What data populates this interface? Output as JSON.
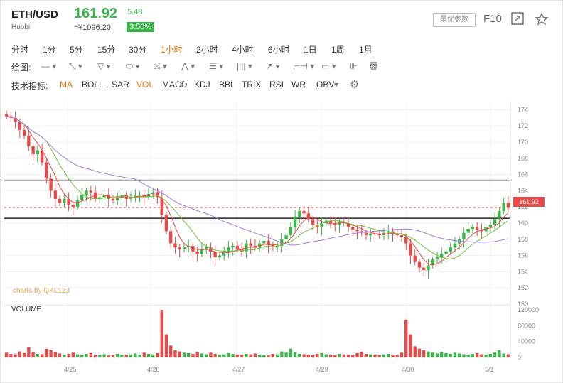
{
  "header": {
    "symbol": "ETH/USD",
    "exchange": "Huobi",
    "price": "161.92",
    "cny_price": "≈¥1096.20",
    "change": "5.48",
    "change_pct": "3.50%",
    "pref_button": "最优参数",
    "f10": "F10"
  },
  "intervals": [
    "分时",
    "1分",
    "5分",
    "15分",
    "30分",
    "1小时",
    "2小时",
    "4小时",
    "6小时",
    "1日",
    "1周",
    "1月"
  ],
  "selected_interval": "1小时",
  "draw_label": "绘图:",
  "indicators_label": "技术指标:",
  "indicators": [
    "MA",
    "BOLL",
    "SAR",
    "VOL",
    "MACD",
    "KDJ",
    "BBI",
    "TRIX",
    "RSI",
    "WR",
    "OBV"
  ],
  "selected_indicators": [
    "MA",
    "VOL"
  ],
  "watermark": "charts by QKL123",
  "volume_label": "VOLUME",
  "colors": {
    "up": "#3bb54a",
    "down": "#e84a4a",
    "accent": "#e8730e",
    "ma_short": "#e84a4a",
    "ma_mid": "#6fbf3c",
    "ma_long": "#a07be0"
  },
  "chart_data": {
    "type": "candlestick",
    "x_ticks": [
      "4/25",
      "4/26",
      "4/27",
      "4/29",
      "4/30",
      "5/1"
    ],
    "y_ticks": [
      150,
      152,
      154,
      156,
      158,
      160,
      162,
      164,
      166,
      168,
      170,
      172,
      174
    ],
    "ylim": [
      150,
      175
    ],
    "volume_ticks": [
      "0",
      "40000",
      "80000",
      "120000"
    ],
    "volume_lim": [
      0,
      120000
    ],
    "current_price": 161.92,
    "support_line": 160.6,
    "resistance_line": 165.3,
    "close_series": [
      173.2,
      173,
      172.5,
      171.5,
      170.8,
      169.5,
      168.5,
      169,
      167.5,
      165.5,
      164,
      163,
      162.5,
      163,
      162.3,
      162,
      162.8,
      163.5,
      164,
      163.8,
      163,
      163.2,
      163.5,
      163,
      162.8,
      163.2,
      163.5,
      163,
      163.2,
      163.4,
      163.5,
      163.3,
      163.6,
      163.8,
      163.2,
      161,
      159,
      157.5,
      157,
      156.8,
      157,
      157.2,
      156.5,
      156.2,
      156.8,
      157,
      156.5,
      155.8,
      156,
      156.5,
      157,
      157.2,
      156.8,
      156.5,
      157.5,
      157.2,
      157,
      157.5,
      157.8,
      157.3,
      157,
      157.2,
      158,
      158.5,
      159.5,
      160.8,
      161.5,
      161.2,
      160.5,
      159.8,
      159.5,
      160,
      160.3,
      160,
      159.8,
      160.2,
      160,
      159.5,
      159.2,
      159,
      158.8,
      158.5,
      158.7,
      158.6,
      158.5,
      158.8,
      159,
      158.7,
      158.5,
      158.3,
      157.5,
      156,
      155.2,
      154.5,
      154.2,
      154.8,
      155.5,
      155.8,
      156.2,
      156.5,
      157,
      157.5,
      158,
      158.8,
      159.3,
      159.5,
      159.2,
      159,
      159.5,
      159.8,
      160.5,
      161.5,
      162.5,
      161.9
    ],
    "volume_series": [
      12000,
      9000,
      8000,
      15000,
      11000,
      26000,
      13000,
      9000,
      8500,
      22000,
      18000,
      14000,
      10000,
      7000,
      9000,
      12000,
      8000,
      7000,
      9000,
      11000,
      6000,
      7000,
      8000,
      5000,
      6000,
      9000,
      7000,
      6000,
      8000,
      10000,
      7000,
      12000,
      9000,
      8000,
      11000,
      120000,
      58000,
      30000,
      18000,
      15000,
      12000,
      11000,
      9000,
      14000,
      10000,
      8000,
      12000,
      9000,
      7000,
      8000,
      11000,
      9000,
      7000,
      6000,
      9000,
      8000,
      10000,
      7000,
      6000,
      5000,
      9000,
      8000,
      15000,
      12000,
      22000,
      13000,
      9000,
      8000,
      7000,
      6000,
      9000,
      11000,
      8000,
      7000,
      6000,
      9000,
      8000,
      7000,
      6000,
      11000,
      14000,
      9000,
      8000,
      7000,
      6000,
      8000,
      9000,
      7000,
      6000,
      12000,
      95000,
      58000,
      28000,
      22000,
      18000,
      15000,
      12000,
      10000,
      14000,
      11000,
      9000,
      12000,
      10000,
      8000,
      7000,
      9000,
      11000,
      8000,
      7000,
      9000,
      12000,
      18000,
      10000,
      8000
    ]
  }
}
